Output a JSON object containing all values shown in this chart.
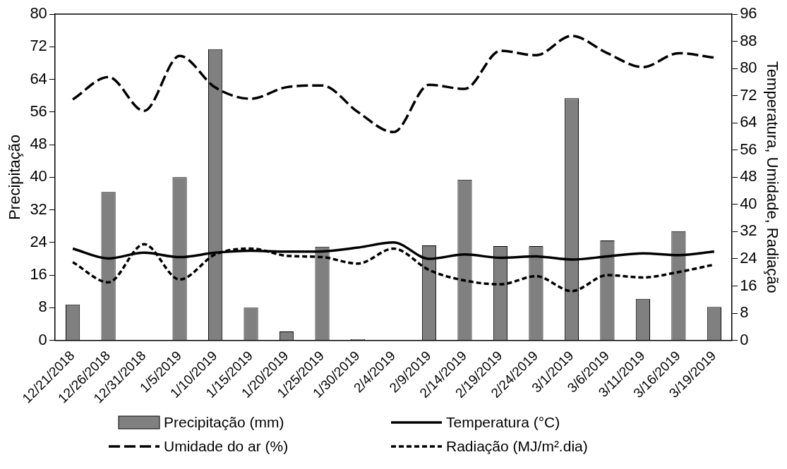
{
  "chart_data": {
    "type": "bar",
    "categories": [
      "12/21/2018",
      "12/26/2018",
      "12/31/2018",
      "1/5/2019",
      "1/10/2019",
      "1/15/2019",
      "1/20/2019",
      "1/25/2019",
      "1/30/2019",
      "2/4/2019",
      "2/9/2019",
      "2/14/2019",
      "2/19/2019",
      "2/24/2019",
      "3/1/2019",
      "3/6/2019",
      "3/11/2019",
      "3/16/2019",
      "3/19/2019"
    ],
    "ylabel": "Precipitação",
    "y2label": "Temperatura, Umidade, Radiação",
    "ylim": [
      0,
      80
    ],
    "yticks": [
      0,
      8,
      16,
      24,
      32,
      40,
      48,
      56,
      64,
      72,
      80
    ],
    "y2lim": [
      0,
      96
    ],
    "y2ticks": [
      0,
      8,
      16,
      24,
      32,
      40,
      48,
      56,
      64,
      72,
      80,
      88,
      96
    ],
    "legend": "bottom",
    "grid": false,
    "series": [
      {
        "name": "Precipitação (mm)",
        "color": "#808080",
        "values": [
          8.8,
          36.4,
          0,
          40,
          71.4,
          8,
          2.2,
          23.0,
          0.3,
          0,
          23.3,
          39.4,
          23.1,
          23.1,
          59.4,
          24.5,
          10.2,
          26.8,
          8.2
        ]
      },
      {
        "name": "Temperatura (°C)",
        "type": "line",
        "axis": "y2",
        "line_style": "solid",
        "color": "#000000",
        "values": [
          27.0,
          24.1,
          25.8,
          24.5,
          25.8,
          26.4,
          26.1,
          26.2,
          27.3,
          28.8,
          24.0,
          25.3,
          24.3,
          24.7,
          23.8,
          24.7,
          25.6,
          25.1,
          26.1
        ]
      },
      {
        "name": "Umidade do ar (%)",
        "type": "line",
        "axis": "y2",
        "line_style": "dashed",
        "color": "#000000",
        "values": [
          70.9,
          77.5,
          67.5,
          83.7,
          74.4,
          71.1,
          74.5,
          75.0,
          67.2,
          61.3,
          75.2,
          74.0,
          85.2,
          83.9,
          89.6,
          84.5,
          80.4,
          84.5,
          83.2
        ]
      },
      {
        "name": "Radiação (MJ/m².dia)",
        "type": "line",
        "axis": "y2",
        "line_style": "dotted",
        "color": "#000000",
        "values": [
          23.0,
          17.1,
          28.3,
          17.9,
          25.3,
          27.0,
          24.9,
          24.5,
          22.6,
          27.0,
          20.7,
          17.6,
          16.5,
          18.9,
          14.5,
          19.2,
          18.5,
          20.1,
          22.3
        ]
      }
    ]
  }
}
